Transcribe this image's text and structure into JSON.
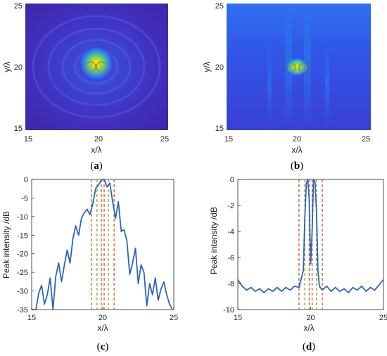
{
  "panels": [
    {
      "id": "a",
      "caption_open": "(",
      "caption_letter": "a",
      "caption_close": ")"
    },
    {
      "id": "b",
      "caption_open": "(",
      "caption_letter": "b",
      "caption_close": ")"
    },
    {
      "id": "c",
      "caption_open": "(",
      "caption_letter": "c",
      "caption_close": ")"
    },
    {
      "id": "d",
      "caption_open": "(",
      "caption_letter": "d",
      "caption_close": ")"
    }
  ],
  "chart_data": [
    {
      "type": "heatmap",
      "panel": "a",
      "xlabel": "x/λ",
      "ylabel": "y/λ",
      "xlim": [
        15,
        25
      ],
      "ylim": [
        15,
        25
      ],
      "xticks": [
        15,
        20,
        25
      ],
      "yticks": [
        15,
        20,
        25
      ],
      "colormap": "parula",
      "colors": {
        "low": "#3e26a8",
        "mid": "#2f6ff2",
        "high": "#f9fb0e"
      },
      "peak_center": [
        20,
        20
      ],
      "marked_sources": [
        {
          "x": 19.6,
          "y": 20
        },
        {
          "x": 20.4,
          "y": 20
        }
      ],
      "marker_color": "#b08a1a"
    },
    {
      "type": "heatmap",
      "panel": "b",
      "xlabel": "x/λ",
      "ylabel": "y/λ",
      "xlim": [
        15,
        25
      ],
      "ylim": [
        15,
        25
      ],
      "xticks": [
        15,
        20,
        25
      ],
      "yticks": [
        15,
        20,
        25
      ],
      "colormap": "parula",
      "colors": {
        "low": "#3a3fd6",
        "mid": "#2f6ff2",
        "high": "#f9fb0e"
      },
      "peak_center": [
        20,
        20
      ],
      "marked_sources": [
        {
          "x": 19.6,
          "y": 20
        },
        {
          "x": 20.4,
          "y": 20
        }
      ],
      "marker_color": "#b08a1a"
    },
    {
      "type": "line",
      "panel": "c",
      "xlabel": "x/λ",
      "ylabel": "Peak intensity /dB",
      "xlim": [
        15,
        25
      ],
      "ylim": [
        -35,
        0
      ],
      "xticks": [
        15,
        20,
        25
      ],
      "yticks": [
        0,
        -5,
        -10,
        -15,
        -20,
        -25,
        -30,
        -35
      ],
      "grid": false,
      "line_color": "#2e65b7",
      "series": [
        {
          "x": [
            15.0,
            15.3,
            15.5,
            15.7,
            15.9,
            16.1,
            16.3,
            16.5,
            16.7,
            16.9,
            17.1,
            17.3,
            17.5,
            17.7,
            17.9,
            18.1,
            18.3,
            18.5,
            18.7,
            18.9,
            19.1,
            19.3,
            19.5,
            19.7,
            19.9,
            20.1,
            20.3,
            20.5,
            20.7,
            20.9,
            21.1,
            21.3,
            21.5,
            21.7,
            21.9,
            22.1,
            22.3,
            22.5,
            22.7,
            22.9,
            23.1,
            23.3,
            23.5,
            23.7,
            23.9,
            24.1,
            24.3,
            24.5,
            24.7,
            24.9
          ],
          "y": [
            -35.0,
            -35.0,
            -30.5,
            -28.5,
            -33.5,
            -31.0,
            -26.5,
            -35.0,
            -26.0,
            -22.5,
            -27.5,
            -23.0,
            -19.0,
            -22.5,
            -16.0,
            -12.5,
            -15.0,
            -10.5,
            -9.0,
            -8.0,
            -9.5,
            -6.5,
            -2.5,
            -1.5,
            -0.2,
            0.0,
            -2.0,
            -1.0,
            -6.0,
            -10.5,
            -6.0,
            -14.0,
            -13.5,
            -16.5,
            -25.5,
            -22.5,
            -18.5,
            -28.0,
            -23.0,
            -25.0,
            -34.0,
            -28.0,
            -31.0,
            -26.5,
            -32.5,
            -29.5,
            -27.5,
            -31.0,
            -33.5,
            -35.0
          ]
        }
      ],
      "vlines": [
        {
          "x": 19.2,
          "color": "#d9541a"
        },
        {
          "x": 19.9,
          "color": "#d9541a"
        },
        {
          "x": 20.1,
          "color": "#d9541a"
        },
        {
          "x": 20.8,
          "color": "#d9541a"
        },
        {
          "x": 19.6,
          "color": "#77ac30"
        },
        {
          "x": 20.4,
          "color": "#77ac30"
        }
      ]
    },
    {
      "type": "line",
      "panel": "d",
      "xlabel": "x/λ",
      "ylabel": "Peak intensity /dB",
      "xlim": [
        15,
        25
      ],
      "ylim": [
        -10,
        0
      ],
      "xticks": [
        15,
        20,
        25
      ],
      "yticks": [
        0,
        -2,
        -4,
        -6,
        -8,
        -10
      ],
      "grid": false,
      "line_color": "#2e65b7",
      "series": [
        {
          "x": [
            15.0,
            15.3,
            15.6,
            15.9,
            16.2,
            16.5,
            16.8,
            17.1,
            17.4,
            17.7,
            18.0,
            18.3,
            18.6,
            18.9,
            19.2,
            19.5,
            19.6,
            19.7,
            19.8,
            19.9,
            20.0,
            20.1,
            20.2,
            20.3,
            20.4,
            20.5,
            20.6,
            20.8,
            21.1,
            21.4,
            21.7,
            22.0,
            22.3,
            22.6,
            22.9,
            23.2,
            23.5,
            23.8,
            24.1,
            24.4,
            24.7,
            25.0
          ],
          "y": [
            -7.7,
            -8.2,
            -8.5,
            -8.3,
            -8.6,
            -8.4,
            -8.7,
            -8.4,
            -8.6,
            -8.3,
            -8.6,
            -8.3,
            -8.5,
            -8.2,
            -8.3,
            -7.0,
            -3.0,
            -0.3,
            0.0,
            -1.5,
            -6.5,
            -4.0,
            0.0,
            -0.2,
            -2.5,
            -7.0,
            -8.2,
            -8.5,
            -8.2,
            -8.6,
            -8.3,
            -8.6,
            -8.4,
            -8.7,
            -8.3,
            -8.5,
            -8.2,
            -8.6,
            -8.3,
            -8.5,
            -8.1,
            -7.7
          ]
        }
      ],
      "vlines": [
        {
          "x": 19.2,
          "color": "#d9541a"
        },
        {
          "x": 19.9,
          "color": "#d9541a"
        },
        {
          "x": 20.1,
          "color": "#d9541a"
        },
        {
          "x": 20.8,
          "color": "#d9541a"
        },
        {
          "x": 19.6,
          "color": "#77ac30"
        },
        {
          "x": 20.4,
          "color": "#77ac30"
        }
      ]
    }
  ]
}
